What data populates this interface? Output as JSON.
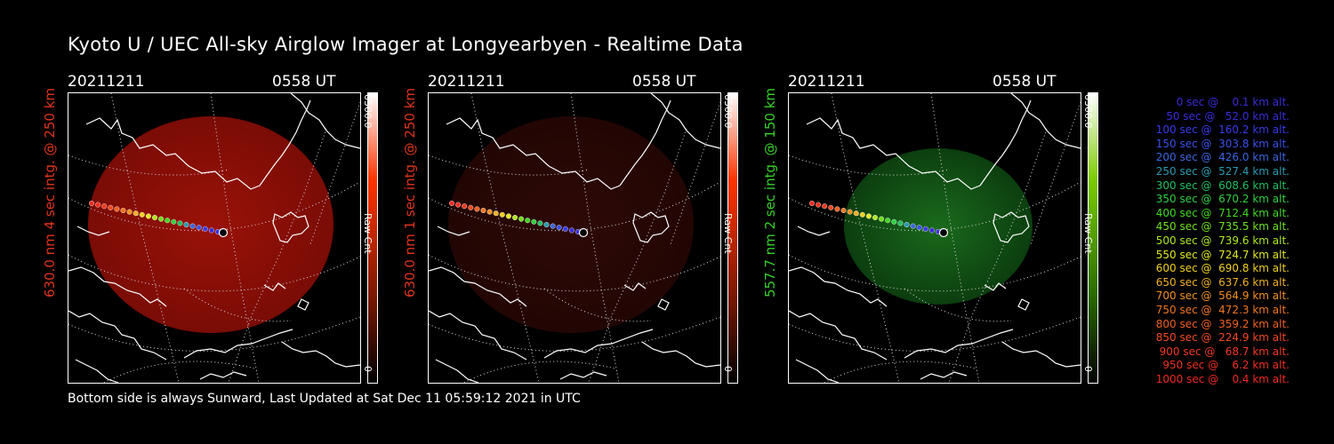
{
  "title": "Kyoto U / UEC All-sky Airglow Imager at Longyearbyen - Realtime Data",
  "footer": "Bottom side is always Sunward, Last Updated at Sat Dec 11 05:59:12 2021 in UTC",
  "panels": [
    {
      "date": "20211211",
      "time": "0558 UT",
      "label": "630.0 nm 4 sec intg. @ 250 km",
      "label_color": "#e0341c",
      "cbar_max": "6500.0",
      "cbar_unit": "Raw Cnt",
      "cbar_min": "0",
      "fill": "#8a0d08",
      "gradient_top": "#ff3300",
      "brightness": "bright"
    },
    {
      "date": "20211211",
      "time": "0558 UT",
      "label": "630.0 nm 1 sec intg. @ 250 km",
      "label_color": "#e0341c",
      "cbar_max": "6500.0",
      "cbar_unit": "Raw Cnt",
      "cbar_min": "0",
      "fill": "#2a0806",
      "gradient_top": "#ff3300",
      "brightness": "dim"
    },
    {
      "date": "20211211",
      "time": "0558 UT",
      "label": "557.7 nm 2 sec intg. @ 150 km",
      "label_color": "#36d12a",
      "cbar_max": "6500.0",
      "cbar_unit": "Raw Cnt",
      "cbar_min": "0",
      "fill": "#0f4a12",
      "gradient_top": "#7acc00",
      "brightness": "green"
    }
  ],
  "legend": [
    {
      "text": "0 sec @    0.1 km alt.",
      "color": "#3a2cd8"
    },
    {
      "text": "50 sec @   52.0 km alt.",
      "color": "#3a2cd8"
    },
    {
      "text": "100 sec @  160.2 km alt.",
      "color": "#3a3ae8"
    },
    {
      "text": "150 sec @  303.8 km alt.",
      "color": "#3a50e8"
    },
    {
      "text": "200 sec @  426.0 km alt.",
      "color": "#3a66e0"
    },
    {
      "text": "250 sec @  527.4 km alt.",
      "color": "#2a9ab0"
    },
    {
      "text": "300 sec @  608.6 km alt.",
      "color": "#20c060"
    },
    {
      "text": "350 sec @  670.2 km alt.",
      "color": "#30d040"
    },
    {
      "text": "400 sec @  712.4 km alt.",
      "color": "#40d820"
    },
    {
      "text": "450 sec @  735.5 km alt.",
      "color": "#70e020"
    },
    {
      "text": "500 sec @  739.6 km alt.",
      "color": "#b0e820"
    },
    {
      "text": "550 sec @  724.7 km alt.",
      "color": "#e0e820"
    },
    {
      "text": "600 sec @  690.8 km alt.",
      "color": "#f0d020"
    },
    {
      "text": "650 sec @  637.6 km alt.",
      "color": "#f0b020"
    },
    {
      "text": "700 sec @  564.9 km alt.",
      "color": "#f09020"
    },
    {
      "text": "750 sec @  472.3 km alt.",
      "color": "#f07820"
    },
    {
      "text": "800 sec @  359.2 km alt.",
      "color": "#f06020"
    },
    {
      "text": "850 sec @  224.9 km alt.",
      "color": "#f04a20"
    },
    {
      "text": "900 sec @   68.7 km alt.",
      "color": "#f03a20"
    },
    {
      "text": "950 sec @    6.2 km alt.",
      "color": "#f03020"
    },
    {
      "text": "1000 sec @    0.4 km alt.",
      "color": "#f02a20"
    }
  ]
}
